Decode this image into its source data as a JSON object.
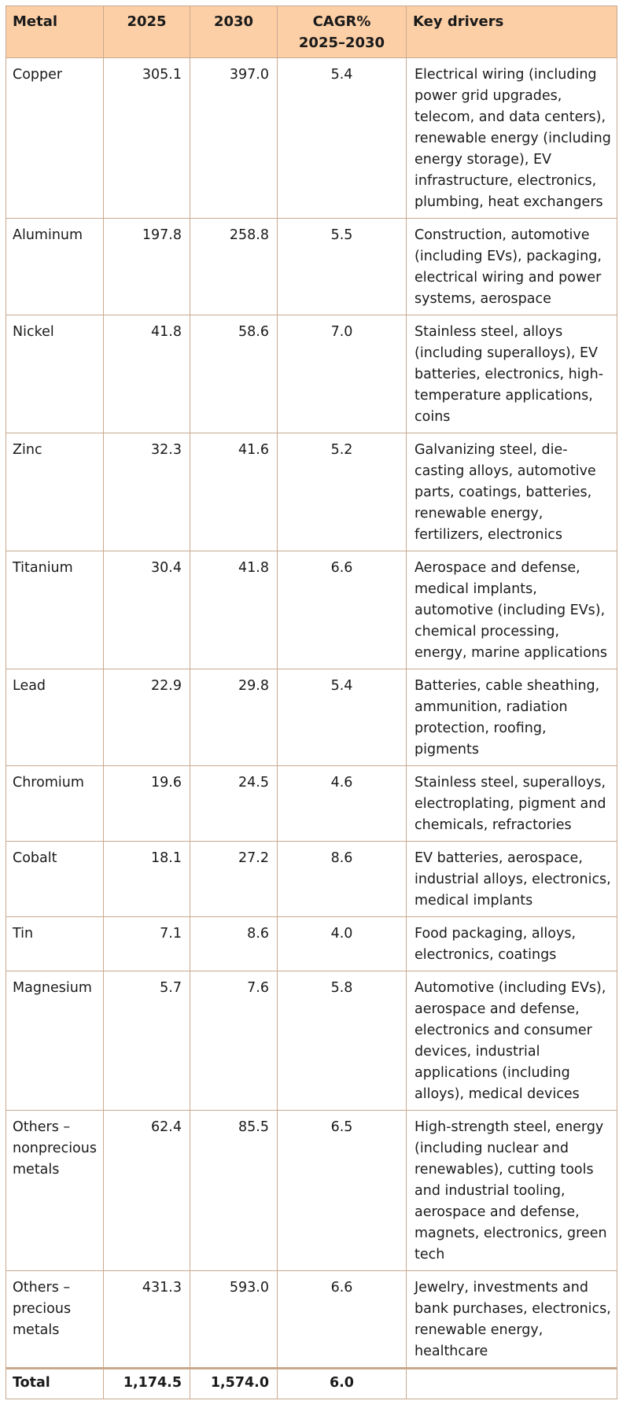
{
  "headers": {
    "metal": "Metal",
    "y2025": "2025",
    "y2030": "2030",
    "cagr_line1": "CAGR%",
    "cagr_line2": "2025–2030",
    "drivers": "Key drivers"
  },
  "rows": [
    {
      "metal": "Copper",
      "v2025": "305.1",
      "v2030": "397.0",
      "cagr": "5.4",
      "drivers": "Electrical wiring (including power grid upgrades, telecom, and data centers), renewable energy (including energy storage), EV infrastructure, electronics, plumbing, heat exchangers"
    },
    {
      "metal": "Aluminum",
      "v2025": "197.8",
      "v2030": "258.8",
      "cagr": "5.5",
      "drivers": "Construction, automotive (including EVs), packaging, electrical wiring and power systems, aerospace"
    },
    {
      "metal": "Nickel",
      "v2025": "41.8",
      "v2030": "58.6",
      "cagr": "7.0",
      "drivers": "Stainless steel, alloys (including superalloys), EV batteries, electronics, high-temperature applications, coins"
    },
    {
      "metal": "Zinc",
      "v2025": "32.3",
      "v2030": "41.6",
      "cagr": "5.2",
      "drivers": "Galvanizing steel, die-casting alloys, automotive parts, coatings, batteries, renewable energy, fertilizers, electronics"
    },
    {
      "metal": "Titanium",
      "v2025": "30.4",
      "v2030": "41.8",
      "cagr": "6.6",
      "drivers": "Aerospace and defense, medical implants, automotive (including EVs), chemical processing, energy, marine applications"
    },
    {
      "metal": "Lead",
      "v2025": "22.9",
      "v2030": "29.8",
      "cagr": "5.4",
      "drivers": "Batteries, cable sheathing, ammunition, radiation protection, roofing, pigments"
    },
    {
      "metal": "Chromium",
      "v2025": "19.6",
      "v2030": "24.5",
      "cagr": "4.6",
      "drivers": "Stainless steel, superalloys, electroplating, pigment and chemicals, refractories"
    },
    {
      "metal": "Cobalt",
      "v2025": "18.1",
      "v2030": "27.2",
      "cagr": "8.6",
      "drivers": "EV batteries, aerospace, industrial alloys, electronics, medical implants"
    },
    {
      "metal": "Tin",
      "v2025": "7.1",
      "v2030": "8.6",
      "cagr": "4.0",
      "drivers": "Food packaging, alloys, electronics, coatings"
    },
    {
      "metal": "Magnesium",
      "v2025": "5.7",
      "v2030": "7.6",
      "cagr": "5.8",
      "drivers": "Automotive (including EVs), aerospace and defense, electronics and consumer devices, industrial applications (including alloys), medical devices"
    },
    {
      "metal": "Others – nonprecious metals",
      "v2025": "62.4",
      "v2030": "85.5",
      "cagr": "6.5",
      "drivers": "High-strength steel, energy (including nuclear and renewables), cutting tools and industrial tooling, aerospace and defense, magnets, electronics, green tech"
    },
    {
      "metal": "Others – precious metals",
      "v2025": "431.3",
      "v2030": "593.0",
      "cagr": "6.6",
      "drivers": "Jewelry, investments and bank purchases, electronics, renewable energy, healthcare"
    }
  ],
  "total": {
    "metal": "Total",
    "v2025": "1,174.5",
    "v2030": "1,574.0",
    "cagr": "6.0",
    "drivers": ""
  }
}
